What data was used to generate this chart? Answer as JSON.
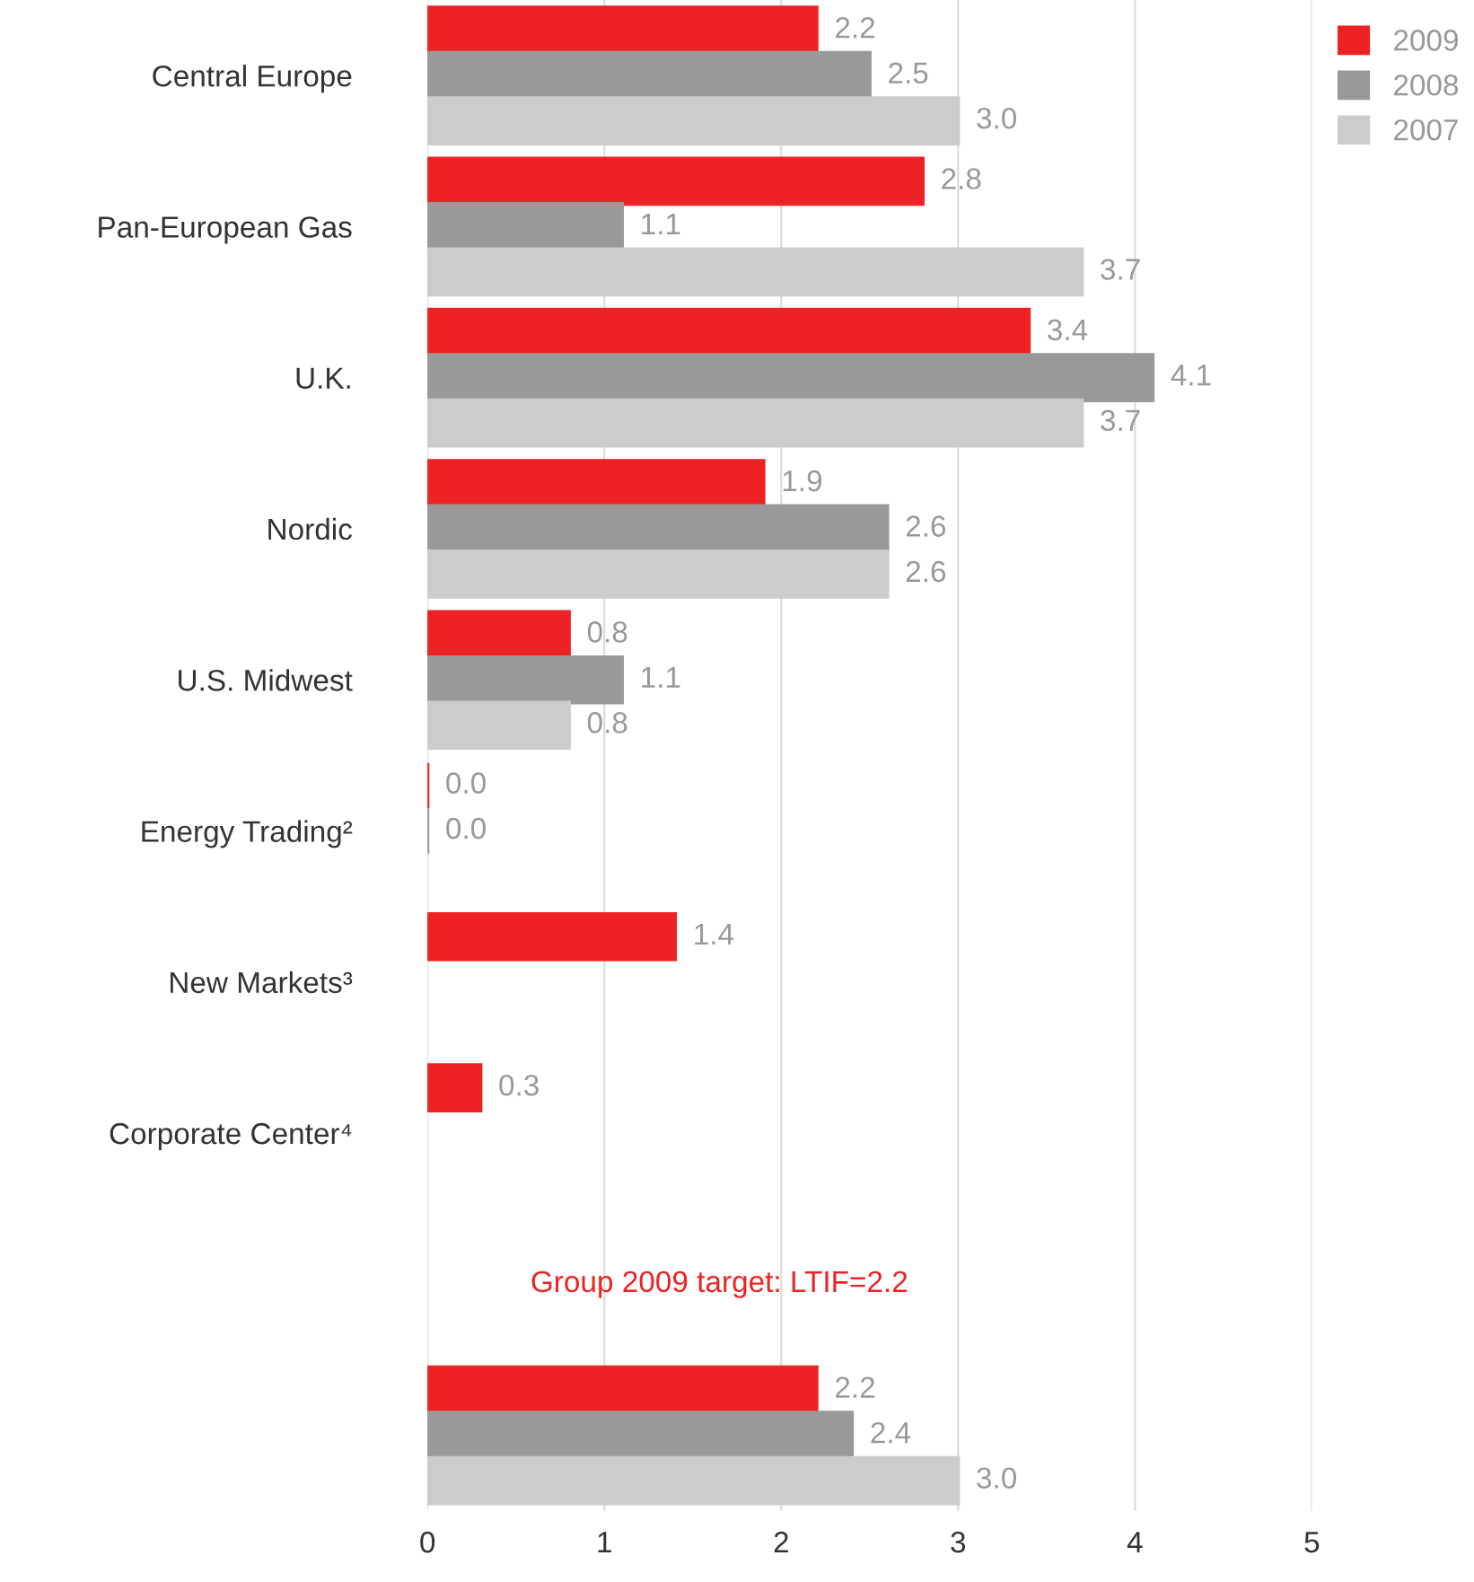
{
  "chart_data": {
    "type": "bar",
    "orientation": "horizontal",
    "categories": [
      "Central Europe",
      "Pan-European Gas",
      "U.K.",
      "Nordic",
      "U.S. Midwest",
      "Energy Trading²",
      "New Markets³",
      "Corporate Center⁴",
      null,
      null
    ],
    "series": [
      {
        "name": "2009",
        "color": "#ee2224",
        "values": [
          2.2,
          2.8,
          3.4,
          1.9,
          0.8,
          0,
          1.4,
          0.3,
          null,
          2.2
        ],
        "value_labels": [
          "2.2",
          "2.8",
          "3.4",
          "1.9",
          "0.8",
          "0.0",
          "1.4",
          "0.3",
          null,
          "2.2"
        ]
      },
      {
        "name": "2008",
        "color": "#999999",
        "values": [
          2.5,
          1.1,
          4.1,
          2.6,
          1.1,
          0,
          null,
          null,
          null,
          2.4
        ],
        "value_labels": [
          "2.5",
          "1.1",
          "4.1",
          "2.6",
          "1.1",
          "0.0",
          null,
          null,
          null,
          "2.4"
        ]
      },
      {
        "name": "2007",
        "color": "#cccccc",
        "values": [
          3,
          3.7,
          3.7,
          2.6,
          0.8,
          null,
          null,
          null,
          null,
          3
        ],
        "value_labels": [
          "3.0",
          "3.7",
          "3.7",
          "2.6",
          "0.8",
          null,
          null,
          null,
          null,
          "3.0"
        ]
      }
    ],
    "xlim": [
      0,
      5
    ],
    "xticks": [
      0,
      1,
      2,
      3,
      4,
      5
    ],
    "grid": "x",
    "legend": "top right",
    "annotations": [
      "Group 2009 target: LTIF=2.2"
    ]
  }
}
